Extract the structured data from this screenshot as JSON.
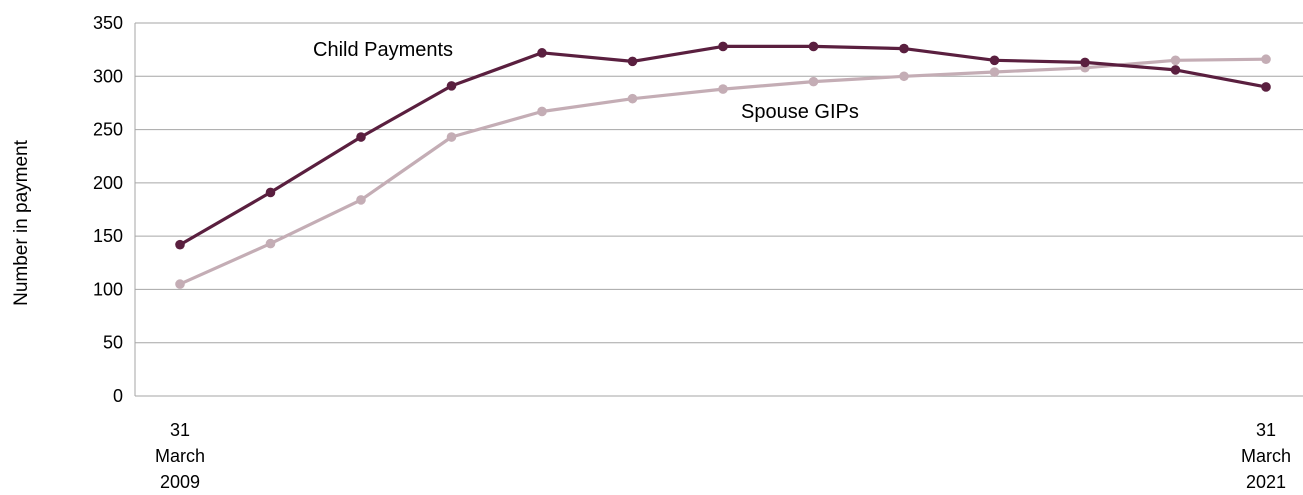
{
  "chart_data": {
    "type": "line",
    "xlabel": "",
    "ylabel": "Number in payment",
    "ylim": [
      0,
      350
    ],
    "y_ticks": [
      "0",
      "50",
      "100",
      "150",
      "200",
      "250",
      "300",
      "350"
    ],
    "grid": "horizontal",
    "x_tick_labels": [
      {
        "index": 0,
        "lines": [
          "31",
          "March",
          "2009"
        ]
      },
      {
        "index": 12,
        "lines": [
          "31",
          "March",
          "2021"
        ]
      }
    ],
    "series": [
      {
        "name": "Child Payments",
        "color": "#5a1f3f",
        "values": [
          142,
          191,
          243,
          291,
          322,
          314,
          328,
          328,
          326,
          315,
          313,
          306,
          290
        ]
      },
      {
        "name": "Spouse GIPs",
        "color": "#c4adb5",
        "values": [
          105,
          143,
          184,
          243,
          267,
          279,
          288,
          295,
          300,
          304,
          308,
          315,
          316
        ]
      }
    ]
  }
}
